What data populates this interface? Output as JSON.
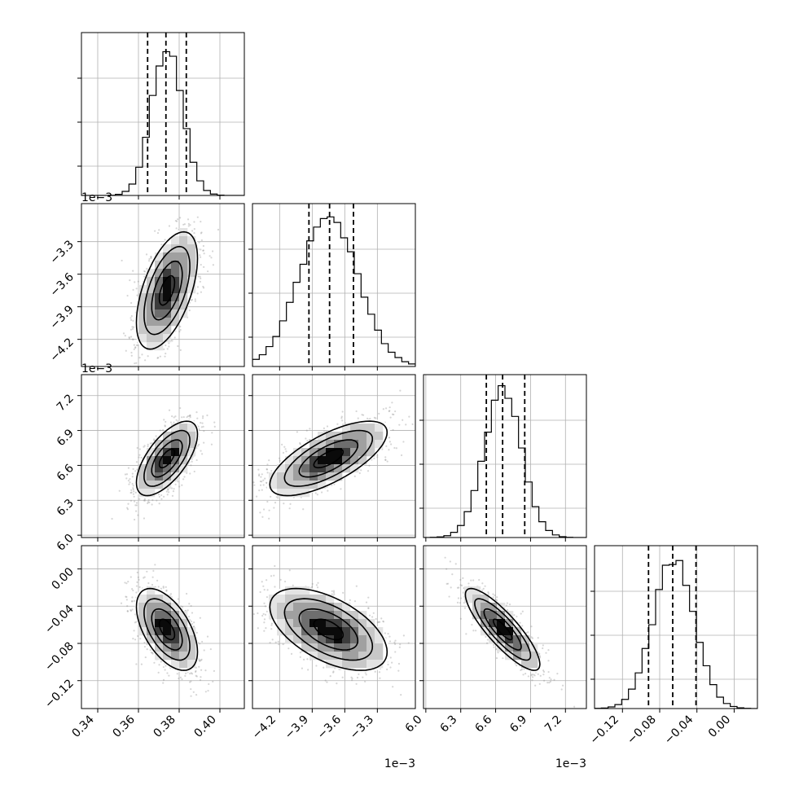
{
  "chart_data": {
    "type": "corner",
    "n_params": 4,
    "params": [
      {
        "mean": 0.374,
        "sd": 0.0075,
        "range": [
          0.332,
          0.412
        ],
        "ticks": [
          0.34,
          0.36,
          0.38,
          0.4
        ],
        "tick_labels": [
          "0.34",
          "0.36",
          "0.38",
          "0.40"
        ],
        "quantiles": [
          0.3645,
          0.3735,
          0.3835
        ],
        "offset_label": ""
      },
      {
        "mean": -3.75,
        "sd": 0.27,
        "range": [
          -4.45,
          -2.95
        ],
        "ticks": [
          -4.2,
          -3.9,
          -3.6,
          -3.3
        ],
        "tick_labels": [
          "−4.2",
          "−3.9",
          "−3.6",
          "−3.3"
        ],
        "quantiles": [
          -3.93,
          -3.74,
          -3.52
        ],
        "offset_label": "1e−3"
      },
      {
        "mean": 6.66,
        "sd": 0.16,
        "range": [
          5.98,
          7.38
        ],
        "ticks": [
          6.0,
          6.3,
          6.6,
          6.9,
          7.2
        ],
        "tick_labels": [
          "6.0",
          "6.3",
          "6.6",
          "6.9",
          "7.2"
        ],
        "quantiles": [
          6.52,
          6.66,
          6.85
        ],
        "offset_label": "1e−3"
      },
      {
        "mean": -0.065,
        "sd": 0.022,
        "range": [
          -0.15,
          0.025
        ],
        "ticks": [
          -0.12,
          -0.08,
          -0.04,
          0.0
        ],
        "tick_labels": [
          "−0.12",
          "−0.08",
          "−0.04",
          "0.00"
        ],
        "quantiles": [
          -0.092,
          -0.066,
          -0.041
        ],
        "offset_label": ""
      }
    ],
    "correlations": [
      [
        1.0,
        0.55,
        0.65,
        -0.55
      ],
      [
        0.55,
        1.0,
        0.7,
        -0.55
      ],
      [
        0.65,
        0.7,
        1.0,
        -0.85
      ],
      [
        -0.55,
        -0.55,
        -0.85,
        1.0
      ]
    ],
    "contour_levels_sigma": [
      0.5,
      1.0,
      1.5,
      2.0
    ],
    "grid": true,
    "quantile_line_style": "dashed"
  }
}
